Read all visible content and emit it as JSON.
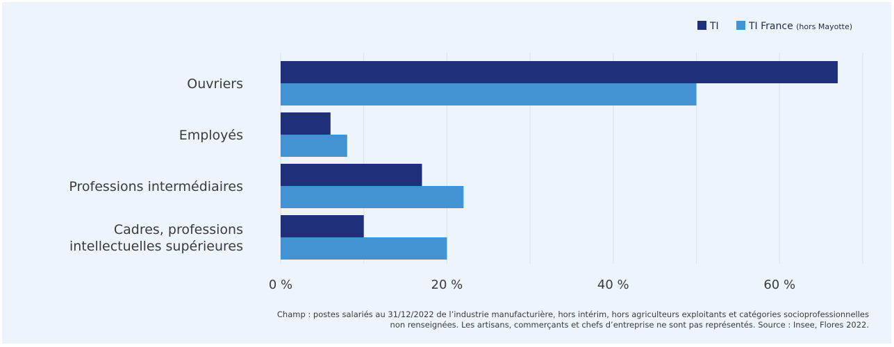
{
  "chart_data": {
    "type": "bar",
    "orientation": "horizontal",
    "categories": [
      [
        "Ouvriers"
      ],
      [
        "Employés"
      ],
      [
        "Professions intermédiaires"
      ],
      [
        "Cadres, professions",
        "intellectuelles supérieures"
      ]
    ],
    "series": [
      {
        "name": "TI",
        "color": "#1f2f7a",
        "values": [
          67,
          6,
          17,
          10
        ]
      },
      {
        "name": "TI France",
        "name_suffix": "(hors Mayotte)",
        "color": "#4392d3",
        "values": [
          50,
          8,
          22,
          20
        ]
      }
    ],
    "xlim": [
      0,
      70
    ],
    "xticks": [
      0,
      20,
      40,
      60
    ],
    "xtick_labels": [
      "0 %",
      "20 %",
      "40 %",
      "60 %"
    ],
    "minor_gridlines": [
      10,
      30,
      50,
      70
    ],
    "legend_position": "top-right",
    "grid": true
  },
  "note": {
    "line1": "Champ : postes salariés au 31/12/2022 de l’industrie manufacturière, hors intérim, hors agriculteurs exploitants et catégories socioprofessionnelles",
    "line2": "non renseignées. Les artisans, commerçants et chefs d’entreprise ne sont pas représentés. Source : Insee, Flores 2022."
  }
}
